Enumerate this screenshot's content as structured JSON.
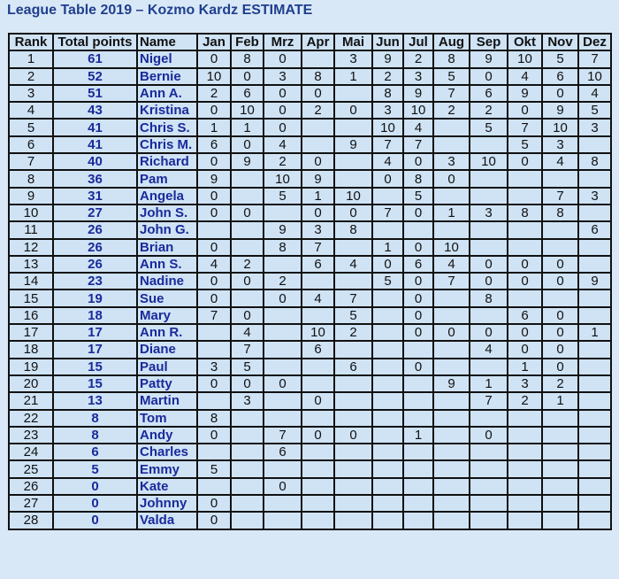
{
  "title": "League Table 2019 – Kozmo Kardz ESTIMATE",
  "headers": [
    "Rank",
    "Total points",
    "Name",
    "Jan",
    "Feb",
    "Mrz",
    "Apr",
    "Mai",
    "Jun",
    "Jul",
    "Aug",
    "Sep",
    "Okt",
    "Nov",
    "Dez"
  ],
  "rows": [
    {
      "rank": "1",
      "points": "61",
      "name": "Nigel",
      "months": [
        "0",
        "8",
        "0",
        "",
        "3",
        "9",
        "2",
        "8",
        "9",
        "10",
        "5",
        "7"
      ]
    },
    {
      "rank": "2",
      "points": "52",
      "name": "Bernie",
      "months": [
        "10",
        "0",
        "3",
        "8",
        "1",
        "2",
        "3",
        "5",
        "0",
        "4",
        "6",
        "10"
      ]
    },
    {
      "rank": "3",
      "points": "51",
      "name": "Ann A.",
      "months": [
        "2",
        "6",
        "0",
        "0",
        "",
        "8",
        "9",
        "7",
        "6",
        "9",
        "0",
        "4"
      ]
    },
    {
      "rank": "4",
      "points": "43",
      "name": "Kristina",
      "months": [
        "0",
        "10",
        "0",
        "2",
        "0",
        "3",
        "10",
        "2",
        "2",
        "0",
        "9",
        "5"
      ]
    },
    {
      "rank": "5",
      "points": "41",
      "name": "Chris S.",
      "months": [
        "1",
        "1",
        "0",
        "",
        "",
        "10",
        "4",
        "",
        "5",
        "7",
        "10",
        "3"
      ]
    },
    {
      "rank": "6",
      "points": "41",
      "name": "Chris M.",
      "months": [
        "6",
        "0",
        "4",
        "",
        "9",
        "7",
        "7",
        "",
        "",
        "5",
        "3",
        ""
      ]
    },
    {
      "rank": "7",
      "points": "40",
      "name": "Richard",
      "months": [
        "0",
        "9",
        "2",
        "0",
        "",
        "4",
        "0",
        "3",
        "10",
        "0",
        "4",
        "8"
      ]
    },
    {
      "rank": "8",
      "points": "36",
      "name": "Pam",
      "months": [
        "9",
        "",
        "10",
        "9",
        "",
        "0",
        "8",
        "0",
        "",
        "",
        "",
        ""
      ]
    },
    {
      "rank": "9",
      "points": "31",
      "name": "Angela",
      "months": [
        "0",
        "",
        "5",
        "1",
        "10",
        "",
        "5",
        "",
        "",
        "",
        "7",
        "3"
      ]
    },
    {
      "rank": "10",
      "points": "27",
      "name": "John S.",
      "months": [
        "0",
        "0",
        "",
        "0",
        "0",
        "7",
        "0",
        "1",
        "3",
        "8",
        "8",
        ""
      ]
    },
    {
      "rank": "11",
      "points": "26",
      "name": "John G.",
      "months": [
        "",
        "",
        "9",
        "3",
        "8",
        "",
        "",
        "",
        "",
        "",
        "",
        "6"
      ]
    },
    {
      "rank": "12",
      "points": "26",
      "name": "Brian",
      "months": [
        "0",
        "",
        "8",
        "7",
        "",
        "1",
        "0",
        "10",
        "",
        "",
        "",
        ""
      ]
    },
    {
      "rank": "13",
      "points": "26",
      "name": "Ann S.",
      "months": [
        "4",
        "2",
        "",
        "6",
        "4",
        "0",
        "6",
        "4",
        "0",
        "0",
        "0",
        ""
      ]
    },
    {
      "rank": "14",
      "points": "23",
      "name": "Nadine",
      "months": [
        "0",
        "0",
        "2",
        "",
        "",
        "5",
        "0",
        "7",
        "0",
        "0",
        "0",
        "9"
      ]
    },
    {
      "rank": "15",
      "points": "19",
      "name": "Sue",
      "months": [
        "0",
        "",
        "0",
        "4",
        "7",
        "",
        "0",
        "",
        "8",
        "",
        "",
        ""
      ]
    },
    {
      "rank": "16",
      "points": "18",
      "name": "Mary",
      "months": [
        "7",
        "0",
        "",
        "",
        "5",
        "",
        "0",
        "",
        "",
        "6",
        "0",
        ""
      ]
    },
    {
      "rank": "17",
      "points": "17",
      "name": "Ann R.",
      "months": [
        "",
        "4",
        "",
        "10",
        "2",
        "",
        "0",
        "0",
        "0",
        "0",
        "0",
        "1"
      ]
    },
    {
      "rank": "18",
      "points": "17",
      "name": "Diane",
      "months": [
        "",
        "7",
        "",
        "6",
        "",
        "",
        "",
        "",
        "4",
        "0",
        "0",
        ""
      ]
    },
    {
      "rank": "19",
      "points": "15",
      "name": "Paul",
      "months": [
        "3",
        "5",
        "",
        "",
        "6",
        "",
        "0",
        "",
        "",
        "1",
        "0",
        ""
      ]
    },
    {
      "rank": "20",
      "points": "15",
      "name": "Patty",
      "months": [
        "0",
        "0",
        "0",
        "",
        "",
        "",
        "",
        "9",
        "1",
        "3",
        "2",
        ""
      ]
    },
    {
      "rank": "21",
      "points": "13",
      "name": "Martin",
      "months": [
        "",
        "3",
        "",
        "0",
        "",
        "",
        "",
        "",
        "7",
        "2",
        "1",
        ""
      ]
    },
    {
      "rank": "22",
      "points": "8",
      "name": "Tom",
      "months": [
        "8",
        "",
        "",
        "",
        "",
        "",
        "",
        "",
        "",
        "",
        "",
        ""
      ]
    },
    {
      "rank": "23",
      "points": "8",
      "name": "Andy",
      "months": [
        "0",
        "",
        "7",
        "0",
        "0",
        "",
        "1",
        "",
        "0",
        "",
        "",
        ""
      ]
    },
    {
      "rank": "24",
      "points": "6",
      "name": "Charles",
      "months": [
        "",
        "",
        "6",
        "",
        "",
        "",
        "",
        "",
        "",
        "",
        "",
        ""
      ]
    },
    {
      "rank": "25",
      "points": "5",
      "name": "Emmy",
      "months": [
        "5",
        "",
        "",
        "",
        "",
        "",
        "",
        "",
        "",
        "",
        "",
        ""
      ]
    },
    {
      "rank": "26",
      "points": "0",
      "name": "Kate",
      "months": [
        "",
        "",
        "0",
        "",
        "",
        "",
        "",
        "",
        "",
        "",
        "",
        ""
      ]
    },
    {
      "rank": "27",
      "points": "0",
      "name": "Johnny",
      "months": [
        "0",
        "",
        "",
        "",
        "",
        "",
        "",
        "",
        "",
        "",
        "",
        ""
      ]
    },
    {
      "rank": "28",
      "points": "0",
      "name": "Valda",
      "months": [
        "0",
        "",
        "",
        "",
        "",
        "",
        "",
        "",
        "",
        "",
        "",
        ""
      ]
    }
  ]
}
